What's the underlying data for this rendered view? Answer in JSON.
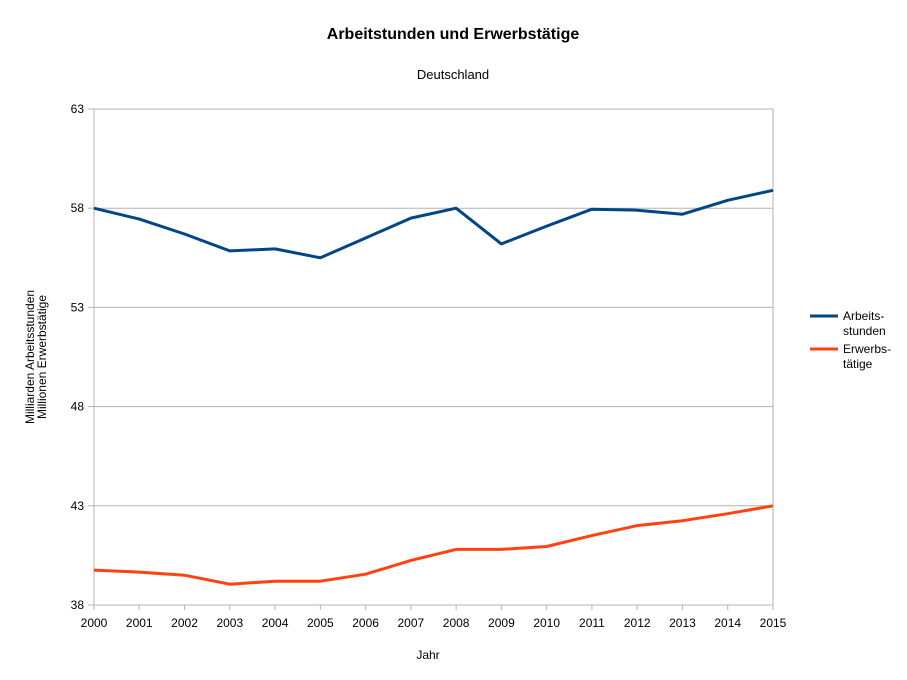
{
  "chart_data": {
    "type": "line",
    "title": "Arbeitstunden und Erwerbstätige",
    "subtitle": "Deutschland",
    "xlabel": "Jahr",
    "ylabel_lines": [
      "Milliarden Arbeitsstunden",
      "Millionen Erwerbstätige"
    ],
    "ylim": [
      38,
      63
    ],
    "yticks": [
      38,
      43,
      48,
      53,
      58,
      63
    ],
    "grid": true,
    "legend_position": "right",
    "categories": [
      "2000",
      "2001",
      "2002",
      "2003",
      "2004",
      "2005",
      "2006",
      "2007",
      "2008",
      "2009",
      "2010",
      "2011",
      "2012",
      "2013",
      "2014",
      "2015"
    ],
    "series": [
      {
        "name": "Arbeits-stunden",
        "legend_lines": [
          "Arbeits-",
          "stunden"
        ],
        "color": "#004586",
        "values": [
          58.0,
          57.45,
          56.7,
          55.85,
          55.95,
          55.5,
          56.5,
          57.5,
          58.0,
          56.2,
          57.1,
          57.95,
          57.9,
          57.7,
          58.4,
          58.9
        ]
      },
      {
        "name": "Erwerbs-tätige",
        "legend_lines": [
          "Erwerbs-",
          "tätige"
        ],
        "color": "#ff420e",
        "values": [
          39.76,
          39.66,
          39.5,
          39.05,
          39.2,
          39.2,
          39.55,
          40.25,
          40.8,
          40.8,
          40.95,
          41.5,
          42.0,
          42.25,
          42.6,
          43.0
        ]
      }
    ]
  },
  "colors": {
    "grid": "#b3b3b3"
  }
}
